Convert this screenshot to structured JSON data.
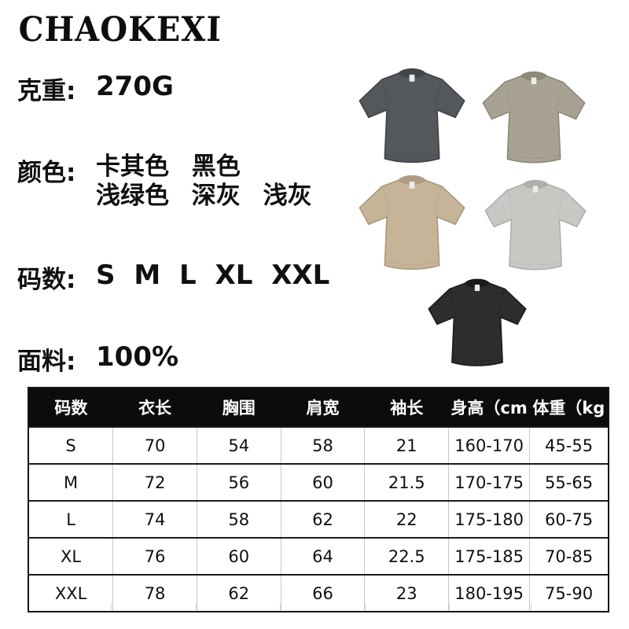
{
  "brand": {
    "logo_text": "CHAOKEXI"
  },
  "specs": {
    "weight_label": "克重:",
    "weight_value": "270G",
    "color_label": "颜色:",
    "color_line1": "卡其色 黑色",
    "color_line2": "浅绿色 深灰 浅灰",
    "size_label": "码数:",
    "size_value": "S M L XL XXL",
    "fabric_label": "面料:",
    "fabric_value": "100%"
  },
  "shirts": [
    {
      "name": "dark-gray-tshirt",
      "fill": "#54575b",
      "shade": "#42454a"
    },
    {
      "name": "khaki-green-tshirt",
      "fill": "#a8a292",
      "shade": "#8f8978"
    },
    {
      "name": "tan-khaki-tshirt",
      "fill": "#c6b499",
      "shade": "#ad9b80"
    },
    {
      "name": "light-gray-tshirt",
      "fill": "#c9c7c4",
      "shade": "#b1afac"
    },
    {
      "name": "black-tshirt",
      "fill": "#2e2d2b",
      "shade": "#1c1b19"
    }
  ],
  "size_table": {
    "headers": [
      "码数",
      "衣长",
      "胸围",
      "肩宽",
      "袖长",
      "身高（cm",
      "体重（kg"
    ],
    "rows": [
      [
        "S",
        "70",
        "54",
        "58",
        "21",
        "160-170",
        "45-55"
      ],
      [
        "M",
        "72",
        "56",
        "60",
        "21.5",
        "170-175",
        "55-65"
      ],
      [
        "L",
        "74",
        "58",
        "62",
        "22",
        "175-180",
        "60-75"
      ],
      [
        "XL",
        "76",
        "60",
        "64",
        "22.5",
        "175-185",
        "70-85"
      ],
      [
        "XXL",
        "78",
        "62",
        "66",
        "23",
        "180-195",
        "75-90"
      ]
    ]
  },
  "colors": {
    "text": "#101010",
    "table_header_bg": "#0c0c0c",
    "grid_line": "#c8c8c8"
  }
}
